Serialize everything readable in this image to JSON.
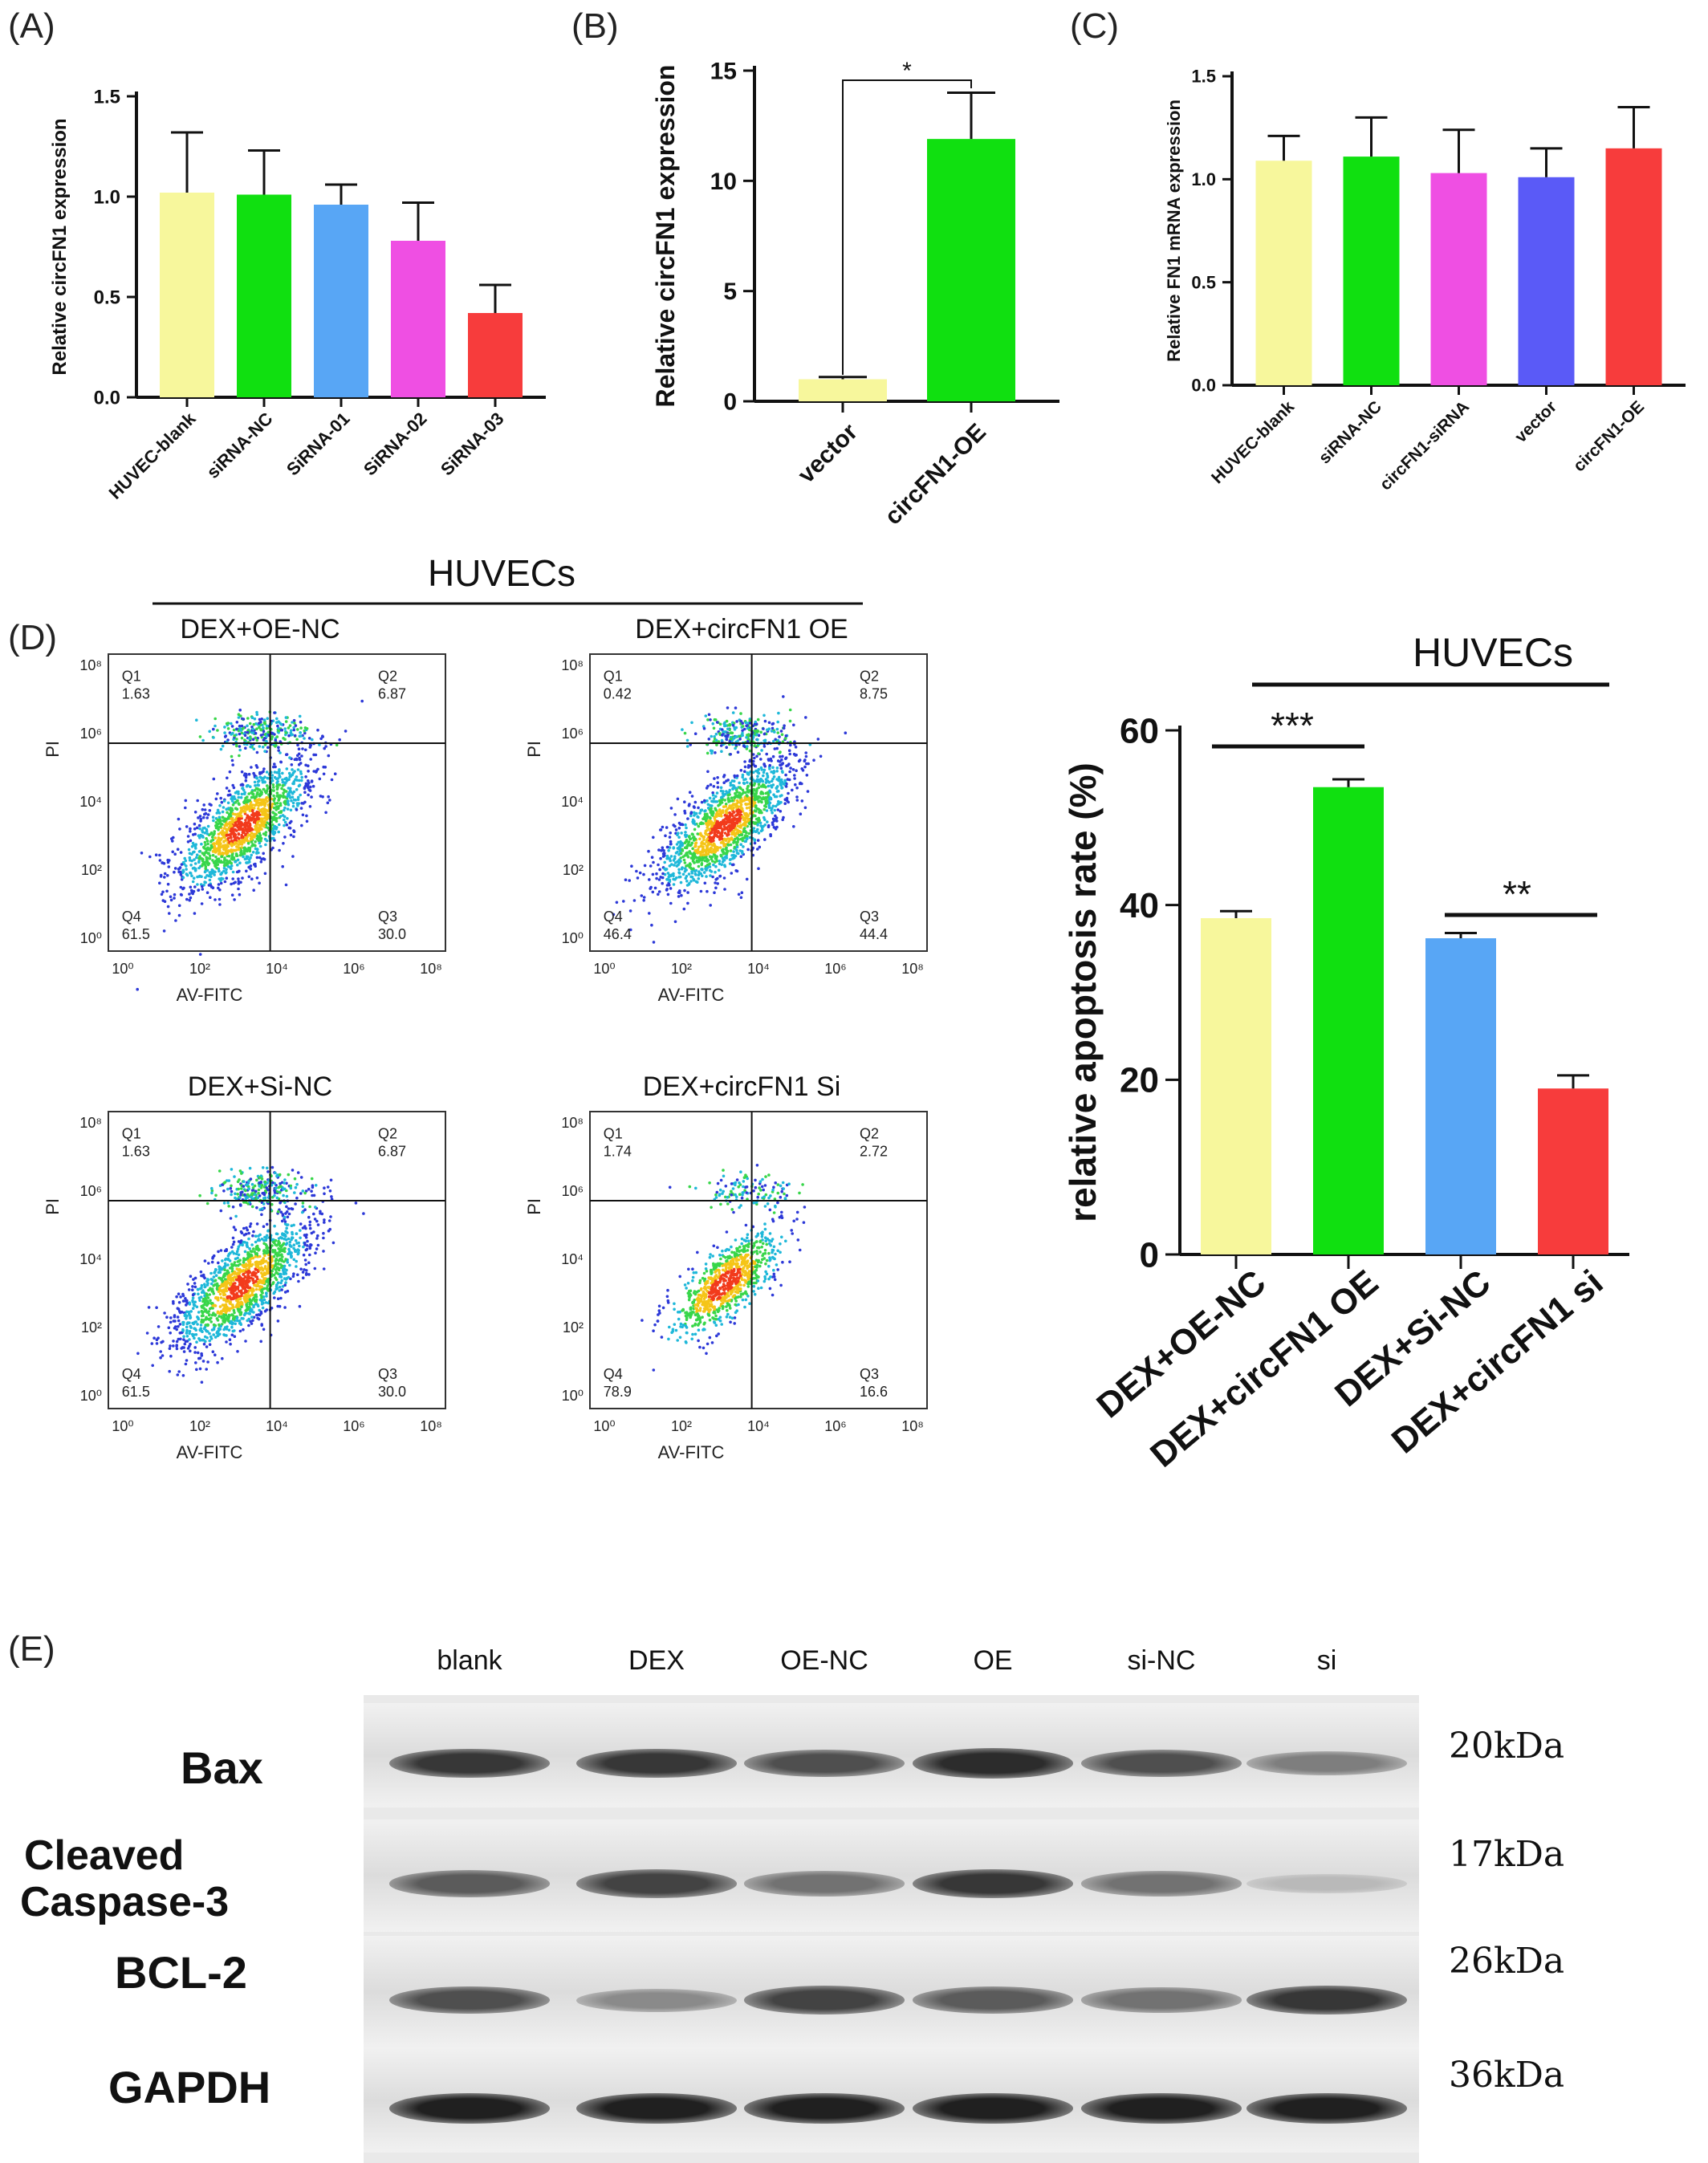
{
  "colors": {
    "yellow": "#f7f79c",
    "green": "#10e010",
    "blue": "#58a6f5",
    "magenta": "#ef4fe3",
    "red": "#f73c3c",
    "violet": "#5a5af7"
  },
  "panels": {
    "A": {
      "label": "(A)"
    },
    "B": {
      "label": "(B)"
    },
    "C": {
      "label": "(C)"
    },
    "D": {
      "label": "(D)"
    },
    "E": {
      "label": "(E)"
    }
  },
  "chart_data": [
    {
      "id": "A",
      "type": "bar",
      "ylabel": "Relative circFN1 expression",
      "yticks": [
        "0.0",
        "0.5",
        "1.0",
        "1.5"
      ],
      "ylim": [
        0,
        1.5
      ],
      "categories": [
        "HUVEC-blank",
        "siRNA-NC",
        "SiRNA-01",
        "SiRNA-02",
        "SiRNA-03"
      ],
      "values": [
        1.02,
        1.01,
        0.96,
        0.78,
        0.42
      ],
      "errors": [
        0.3,
        0.22,
        0.1,
        0.19,
        0.14
      ],
      "colors": [
        "yellow",
        "green",
        "blue",
        "magenta",
        "red"
      ]
    },
    {
      "id": "B",
      "type": "bar",
      "ylabel": "Relative circFN1 expression",
      "yticks": [
        "0",
        "5",
        "10",
        "15"
      ],
      "ylim": [
        0,
        15
      ],
      "categories": [
        "vector",
        "circFN1-OE"
      ],
      "values": [
        1.0,
        11.9
      ],
      "errors": [
        0.1,
        2.1
      ],
      "colors": [
        "yellow",
        "green"
      ],
      "significance": [
        "*"
      ]
    },
    {
      "id": "C",
      "type": "bar",
      "ylabel": "Relative FN1 mRNA expression",
      "yticks": [
        "0.0",
        "0.5",
        "1.0",
        "1.5"
      ],
      "ylim": [
        0,
        1.5
      ],
      "categories": [
        "HUVEC-blank",
        "siRNA-NC",
        "circFN1-siRNA",
        "vector",
        "circFN1-OE"
      ],
      "values": [
        1.09,
        1.11,
        1.03,
        1.01,
        1.15
      ],
      "errors": [
        0.12,
        0.19,
        0.21,
        0.14,
        0.2
      ],
      "colors": [
        "yellow",
        "green",
        "magenta",
        "violet",
        "red"
      ]
    },
    {
      "id": "D-bar",
      "type": "bar",
      "title": "HUVECs",
      "ylabel": "relative apoptosis rate (%)",
      "yticks": [
        "0",
        "20",
        "40",
        "60"
      ],
      "ylim": [
        0,
        60
      ],
      "categories": [
        "DEX+OE-NC",
        "DEX+circFN1 OE",
        "DEX+Si-NC",
        "DEX+circFN1 si"
      ],
      "values": [
        38.5,
        53.5,
        36.2,
        19.0
      ],
      "errors": [
        0.8,
        0.9,
        0.6,
        1.5
      ],
      "colors": [
        "yellow",
        "green",
        "blue",
        "red"
      ],
      "significance": [
        "***",
        "**"
      ]
    }
  ],
  "flow": {
    "header": "HUVECs",
    "x_axis": "AV-FITC",
    "y_axis": "PI",
    "ticks": [
      "10⁰",
      "10²",
      "10⁴",
      "10⁶",
      "10⁸"
    ],
    "plots": [
      {
        "title": "DEX+OE-NC",
        "q1": "1.63",
        "q2": "6.87",
        "q3": "30.0",
        "q4": "61.5"
      },
      {
        "title": "DEX+circFN1 OE",
        "q1": "0.42",
        "q2": "8.75",
        "q3": "44.4",
        "q4": "46.4"
      },
      {
        "title": "DEX+Si-NC",
        "q1": "1.63",
        "q2": "6.87",
        "q3": "30.0",
        "q4": "61.5"
      },
      {
        "title": "DEX+circFN1 Si",
        "q1": "1.74",
        "q2": "2.72",
        "q3": "16.6",
        "q4": "78.9"
      }
    ],
    "quadrant_names": [
      "Q1",
      "Q2",
      "Q3",
      "Q4"
    ]
  },
  "western": {
    "lanes": [
      "blank",
      "DEX",
      "OE-NC",
      "OE",
      "si-NC",
      "si"
    ],
    "rows": [
      {
        "protein": "Bax",
        "kda": "20kDa",
        "intensity": [
          0.85,
          0.85,
          0.75,
          0.9,
          0.75,
          0.55
        ]
      },
      {
        "protein": "Cleaved\nCaspase-3",
        "protein_line1": "Cleaved",
        "protein_line2": "Caspase-3",
        "kda": "17kDa",
        "intensity": [
          0.7,
          0.8,
          0.6,
          0.85,
          0.6,
          0.3
        ]
      },
      {
        "protein": "BCL-2",
        "kda": "26kDa",
        "intensity": [
          0.75,
          0.5,
          0.8,
          0.7,
          0.6,
          0.85
        ]
      },
      {
        "protein": "GAPDH",
        "kda": "36kDa",
        "intensity": [
          0.95,
          0.95,
          0.95,
          0.95,
          0.95,
          0.95
        ]
      }
    ]
  }
}
